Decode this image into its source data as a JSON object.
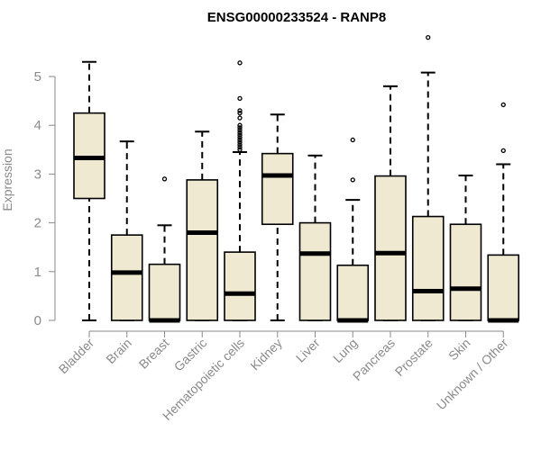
{
  "chart_data": {
    "type": "boxplot",
    "title": "ENSG00000233524 - RANP8",
    "ylabel": "Expression",
    "xlabel": "",
    "ylim": [
      0,
      5.9
    ],
    "yticks": [
      0,
      1,
      2,
      3,
      4,
      5
    ],
    "box_fill": "#efe9d2",
    "categories": [
      "Bladder",
      "Brain",
      "Breast",
      "Gastric",
      "Hematopoietic cells",
      "Kidney",
      "Liver",
      "Lung",
      "Pancreas",
      "Prostate",
      "Skin",
      "Unknown / Other"
    ],
    "boxes": [
      {
        "whisker_low": 0,
        "q1": 2.5,
        "median": 3.33,
        "q3": 4.25,
        "whisker_high": 5.3,
        "outliers": []
      },
      {
        "whisker_low": 0,
        "q1": 0,
        "median": 0.98,
        "q3": 1.75,
        "whisker_high": 3.67,
        "outliers": []
      },
      {
        "whisker_low": 0,
        "q1": 0,
        "median": 0,
        "q3": 1.15,
        "whisker_high": 1.95,
        "outliers": [
          2.9
        ]
      },
      {
        "whisker_low": 0,
        "q1": 0,
        "median": 1.8,
        "q3": 2.88,
        "whisker_high": 3.87,
        "outliers": []
      },
      {
        "whisker_low": 0,
        "q1": 0,
        "median": 0.55,
        "q3": 1.4,
        "whisker_high": 3.45,
        "outliers": [
          3.5,
          3.55,
          3.6,
          3.65,
          3.7,
          3.75,
          3.8,
          3.85,
          3.9,
          3.95,
          4.0,
          4.15,
          4.25,
          4.3,
          4.55,
          5.28
        ]
      },
      {
        "whisker_low": 0,
        "q1": 1.97,
        "median": 2.97,
        "q3": 3.42,
        "whisker_high": 4.22,
        "outliers": []
      },
      {
        "whisker_low": 0,
        "q1": 0,
        "median": 1.37,
        "q3": 2.0,
        "whisker_high": 3.38,
        "outliers": []
      },
      {
        "whisker_low": 0,
        "q1": 0,
        "median": 0,
        "q3": 1.13,
        "whisker_high": 2.47,
        "outliers": [
          2.88,
          3.7
        ]
      },
      {
        "whisker_low": 0,
        "q1": 0,
        "median": 1.38,
        "q3": 2.96,
        "whisker_high": 4.8,
        "outliers": []
      },
      {
        "whisker_low": 0,
        "q1": 0,
        "median": 0.6,
        "q3": 2.13,
        "whisker_high": 5.08,
        "outliers": [
          5.8
        ]
      },
      {
        "whisker_low": 0,
        "q1": 0,
        "median": 0.65,
        "q3": 1.97,
        "whisker_high": 2.97,
        "outliers": []
      },
      {
        "whisker_low": 0,
        "q1": 0,
        "median": 0,
        "q3": 1.34,
        "whisker_high": 3.2,
        "outliers": [
          3.48,
          4.42
        ]
      }
    ]
  }
}
